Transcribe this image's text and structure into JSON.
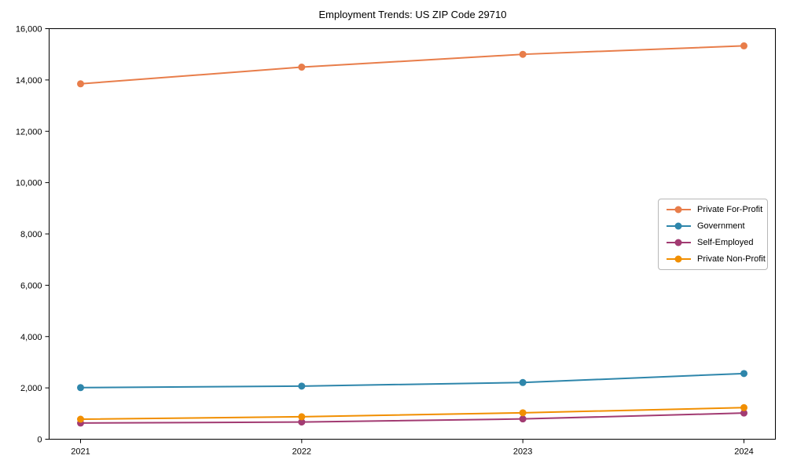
{
  "chart_data": {
    "type": "line",
    "title": "Employment Trends: US ZIP Code 29710",
    "x": [
      "2021",
      "2022",
      "2023",
      "2024"
    ],
    "series": [
      {
        "name": "Private For-Profit",
        "color": "#e87d4a",
        "values": [
          13850,
          14500,
          15000,
          15330
        ]
      },
      {
        "name": "Government",
        "color": "#2e86ab",
        "values": [
          2010,
          2070,
          2210,
          2560
        ]
      },
      {
        "name": "Self-Employed",
        "color": "#a23b72",
        "values": [
          630,
          670,
          790,
          1020
        ]
      },
      {
        "name": "Private Non-Profit",
        "color": "#f18f01",
        "values": [
          780,
          875,
          1030,
          1230
        ]
      }
    ],
    "xlabel": "",
    "ylabel": "",
    "ylim": [
      0,
      16000
    ],
    "yticks": [
      0,
      2000,
      4000,
      6000,
      8000,
      10000,
      12000,
      14000,
      16000
    ],
    "ytick_labels": [
      "0",
      "2,000",
      "4,000",
      "6,000",
      "8,000",
      "10,000",
      "12,000",
      "14,000",
      "16,000"
    ],
    "grid": false,
    "legend_position": "center-right",
    "marker": "circle",
    "axis_color": "#000000",
    "background_color": "#ffffff"
  }
}
